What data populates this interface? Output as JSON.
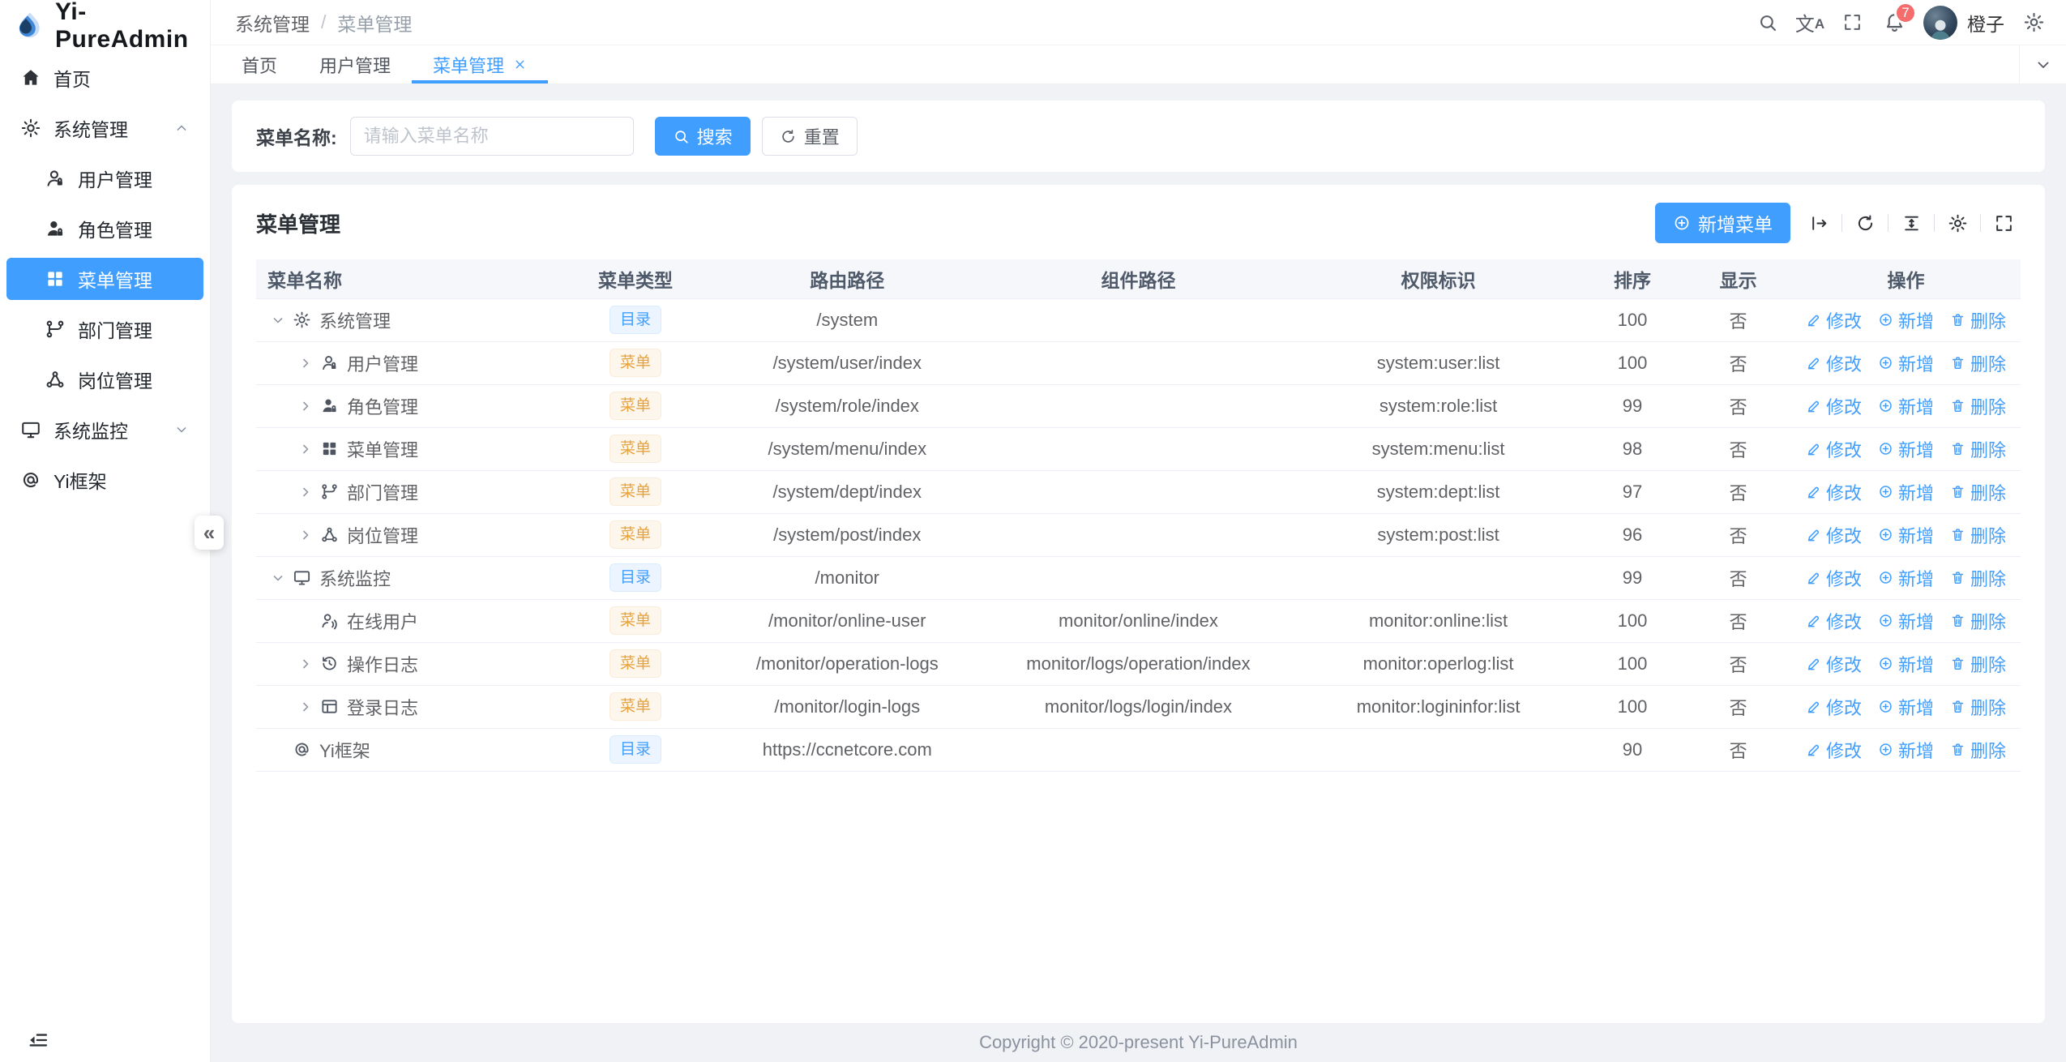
{
  "app": {
    "title": "Yi-PureAdmin"
  },
  "colors": {
    "primary": "#409eff",
    "warning": "#e6a23c",
    "badge": "#f56c6c",
    "active_menu_bg": "#409eff"
  },
  "sidebar": {
    "collapse_hint": "«",
    "items": [
      {
        "label": "首页",
        "icon": "home-icon",
        "type": "leaf"
      },
      {
        "label": "系统管理",
        "icon": "gear-icon",
        "type": "group",
        "state": "expanded",
        "children": [
          {
            "label": "用户管理",
            "icon": "user-icon"
          },
          {
            "label": "角色管理",
            "icon": "role-icon"
          },
          {
            "label": "菜单管理",
            "icon": "menu-grid-icon",
            "active": true
          },
          {
            "label": "部门管理",
            "icon": "dept-icon"
          },
          {
            "label": "岗位管理",
            "icon": "post-icon"
          }
        ]
      },
      {
        "label": "系统监控",
        "icon": "monitor-icon",
        "type": "group",
        "state": "collapsed",
        "children": []
      },
      {
        "label": "Yi框架",
        "icon": "at-icon",
        "type": "leaf"
      }
    ]
  },
  "header": {
    "breadcrumb": [
      "系统管理",
      "菜单管理"
    ],
    "breadcrumb_separator": "/",
    "icons": [
      "search-icon",
      "translate-icon",
      "fullscreen-icon",
      "bell-icon"
    ],
    "notification_count": "7",
    "user": {
      "name": "橙子"
    }
  },
  "tabs": [
    {
      "label": "首页"
    },
    {
      "label": "用户管理"
    },
    {
      "label": "菜单管理",
      "active": true,
      "closable": true
    }
  ],
  "search": {
    "label": "菜单名称:",
    "placeholder": "请输入菜单名称",
    "search_label": "搜索",
    "reset_label": "重置"
  },
  "card": {
    "title": "菜单管理",
    "add_label": "新增菜单",
    "tool_icons": [
      "expand-collapse-icon",
      "refresh-icon",
      "density-icon",
      "column-settings-icon",
      "fullscreen-icon"
    ]
  },
  "table": {
    "columns": [
      "菜单名称",
      "菜单类型",
      "路由路径",
      "组件路径",
      "权限标识",
      "排序",
      "显示",
      "操作"
    ],
    "actions": {
      "edit": "修改",
      "add": "新增",
      "delete": "删除"
    },
    "rows": [
      {
        "level": 0,
        "expand": "down",
        "icon": "gear-icon",
        "name": "系统管理",
        "type": "目录",
        "type_style": "dir",
        "route": "/system",
        "component": "",
        "perm": "",
        "sort": "100",
        "show": "否"
      },
      {
        "level": 1,
        "expand": "right",
        "icon": "user-icon",
        "name": "用户管理",
        "type": "菜单",
        "type_style": "menu",
        "route": "/system/user/index",
        "component": "",
        "perm": "system:user:list",
        "sort": "100",
        "show": "否"
      },
      {
        "level": 1,
        "expand": "right",
        "icon": "role-icon",
        "name": "角色管理",
        "type": "菜单",
        "type_style": "menu",
        "route": "/system/role/index",
        "component": "",
        "perm": "system:role:list",
        "sort": "99",
        "show": "否"
      },
      {
        "level": 1,
        "expand": "right",
        "icon": "menu-grid-icon",
        "name": "菜单管理",
        "type": "菜单",
        "type_style": "menu",
        "route": "/system/menu/index",
        "component": "",
        "perm": "system:menu:list",
        "sort": "98",
        "show": "否"
      },
      {
        "level": 1,
        "expand": "right",
        "icon": "dept-icon",
        "name": "部门管理",
        "type": "菜单",
        "type_style": "menu",
        "route": "/system/dept/index",
        "component": "",
        "perm": "system:dept:list",
        "sort": "97",
        "show": "否"
      },
      {
        "level": 1,
        "expand": "right",
        "icon": "post-icon",
        "name": "岗位管理",
        "type": "菜单",
        "type_style": "menu",
        "route": "/system/post/index",
        "component": "",
        "perm": "system:post:list",
        "sort": "96",
        "show": "否"
      },
      {
        "level": 0,
        "expand": "down",
        "icon": "monitor-icon",
        "name": "系统监控",
        "type": "目录",
        "type_style": "dir",
        "route": "/monitor",
        "component": "",
        "perm": "",
        "sort": "99",
        "show": "否"
      },
      {
        "level": 1,
        "expand": "none",
        "icon": "online-user-icon",
        "name": "在线用户",
        "type": "菜单",
        "type_style": "menu",
        "route": "/monitor/online-user",
        "component": "monitor/online/index",
        "perm": "monitor:online:list",
        "sort": "100",
        "show": "否"
      },
      {
        "level": 1,
        "expand": "right",
        "icon": "operation-log-icon",
        "name": "操作日志",
        "type": "菜单",
        "type_style": "menu",
        "route": "/monitor/operation-logs",
        "component": "monitor/logs/operation/index",
        "perm": "monitor:operlog:list",
        "sort": "100",
        "show": "否"
      },
      {
        "level": 1,
        "expand": "right",
        "icon": "login-log-icon",
        "name": "登录日志",
        "type": "菜单",
        "type_style": "menu",
        "route": "/monitor/login-logs",
        "component": "monitor/logs/login/index",
        "perm": "monitor:logininfor:list",
        "sort": "100",
        "show": "否"
      },
      {
        "level": 0,
        "expand": "none",
        "icon": "at-icon",
        "name": "Yi框架",
        "type": "目录",
        "type_style": "dir",
        "route": "https://ccnetcore.com",
        "component": "",
        "perm": "",
        "sort": "90",
        "show": "否"
      }
    ]
  },
  "footer": {
    "copyright": "Copyright © 2020-present Yi-PureAdmin"
  }
}
